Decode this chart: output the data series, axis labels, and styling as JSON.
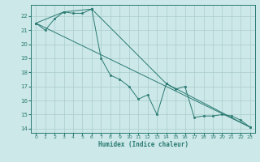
{
  "xlabel": "Humidex (Indice chaleur)",
  "bg_color": "#cce8e8",
  "grid_color": "#aacccc",
  "line_color": "#2a7a72",
  "xlim": [
    -0.5,
    23.5
  ],
  "ylim": [
    13.7,
    22.8
  ],
  "yticks": [
    14,
    15,
    16,
    17,
    18,
    19,
    20,
    21,
    22
  ],
  "xticks": [
    0,
    1,
    2,
    3,
    4,
    5,
    6,
    7,
    8,
    9,
    10,
    11,
    12,
    13,
    14,
    15,
    16,
    17,
    18,
    19,
    20,
    21,
    22,
    23
  ],
  "series1_x": [
    0,
    1,
    2,
    3,
    4,
    5,
    6,
    7,
    8,
    9,
    10,
    11,
    12,
    13,
    14,
    15,
    16,
    17,
    18,
    19,
    20,
    21,
    22,
    23
  ],
  "series1_y": [
    21.5,
    21.0,
    21.8,
    22.3,
    22.2,
    22.2,
    22.5,
    19.0,
    17.8,
    17.5,
    17.0,
    16.1,
    16.4,
    15.0,
    17.2,
    16.8,
    17.0,
    14.8,
    14.9,
    14.9,
    15.0,
    14.9,
    14.6,
    14.1
  ],
  "series2_x": [
    0,
    3,
    6,
    14,
    23
  ],
  "series2_y": [
    21.5,
    22.3,
    22.5,
    17.2,
    14.1
  ],
  "series3_x": [
    0,
    23
  ],
  "series3_y": [
    21.5,
    14.1
  ]
}
